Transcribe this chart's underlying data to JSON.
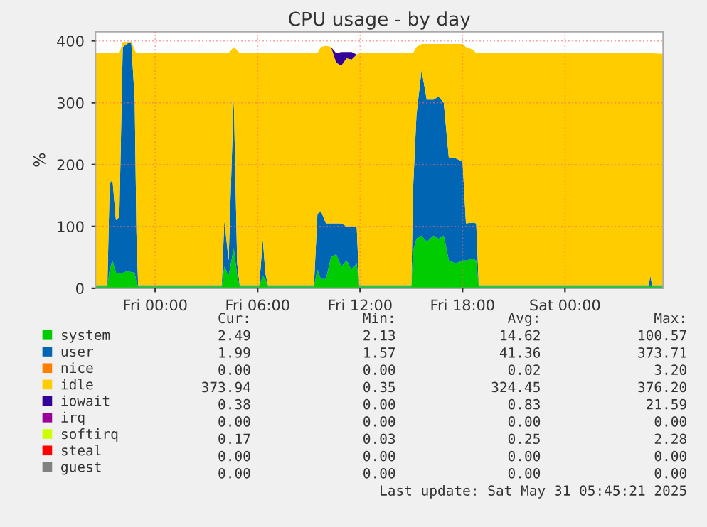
{
  "chart_data": {
    "type": "area",
    "stacked": true,
    "title": "CPU usage - by day",
    "ylabel": "%",
    "x": [
      "2025-05-29T20:30",
      "2025-05-29T21:12",
      "2025-05-29T21:20",
      "2025-05-29T21:30",
      "2025-05-29T21:42",
      "2025-05-29T21:54",
      "2025-05-29T22:06",
      "2025-05-29T22:24",
      "2025-05-29T22:36",
      "2025-05-29T22:48",
      "2025-05-29T22:54",
      "2025-05-29T23:00",
      "2025-05-30T01:30",
      "2025-05-30T03:54",
      "2025-05-30T04:03",
      "2025-05-30T04:18",
      "2025-05-30T04:36",
      "2025-05-30T04:48",
      "2025-05-30T04:57",
      "2025-05-30T06:06",
      "2025-05-30T06:18",
      "2025-05-30T06:27",
      "2025-05-30T06:36",
      "2025-05-30T08:00",
      "2025-05-30T09:18",
      "2025-05-30T09:30",
      "2025-05-30T09:42",
      "2025-05-30T10:00",
      "2025-05-30T10:18",
      "2025-05-30T10:36",
      "2025-05-30T10:54",
      "2025-05-30T11:12",
      "2025-05-30T11:30",
      "2025-05-30T11:48",
      "2025-05-30T11:57",
      "2025-05-30T13:30",
      "2025-05-30T15:00",
      "2025-05-30T15:06",
      "2025-05-30T15:18",
      "2025-05-30T15:36",
      "2025-05-30T15:54",
      "2025-05-30T16:18",
      "2025-05-30T16:36",
      "2025-05-30T16:54",
      "2025-05-30T17:12",
      "2025-05-30T17:36",
      "2025-05-30T18:00",
      "2025-05-30T18:12",
      "2025-05-30T18:36",
      "2025-05-30T18:48",
      "2025-05-30T18:57",
      "2025-05-30T22:00",
      "2025-05-31T02:00",
      "2025-05-31T04:54",
      "2025-05-31T05:00",
      "2025-05-31T05:06",
      "2025-05-31T05:45"
    ],
    "series": [
      {
        "name": "system",
        "color": "#00cc00",
        "values": [
          3,
          3,
          30,
          45,
          25,
          25,
          25,
          28,
          26,
          25,
          10,
          3,
          3,
          3,
          35,
          20,
          65,
          20,
          3,
          3,
          20,
          15,
          3,
          3,
          3,
          30,
          15,
          15,
          50,
          55,
          35,
          45,
          30,
          40,
          3,
          3,
          3,
          60,
          80,
          85,
          75,
          85,
          80,
          85,
          45,
          40,
          45,
          45,
          48,
          45,
          3,
          3,
          3,
          3,
          5,
          3,
          3
        ]
      },
      {
        "name": "user",
        "color": "#0066b3",
        "values": [
          2,
          2,
          140,
          130,
          85,
          90,
          365,
          368,
          370,
          280,
          80,
          2,
          2,
          2,
          75,
          25,
          245,
          20,
          2,
          2,
          60,
          10,
          2,
          2,
          2,
          90,
          110,
          90,
          55,
          50,
          70,
          55,
          70,
          60,
          2,
          2,
          2,
          100,
          200,
          268,
          230,
          220,
          230,
          215,
          165,
          170,
          160,
          60,
          58,
          60,
          2,
          2,
          2,
          2,
          15,
          2,
          2
        ]
      },
      {
        "name": "nice",
        "color": "#ff8000",
        "values": [
          null,
          null,
          null,
          null,
          null,
          null,
          null,
          null,
          null,
          null,
          null,
          null,
          null,
          null,
          null,
          null,
          null,
          null,
          null,
          null,
          null,
          null,
          null,
          null,
          null,
          null,
          null,
          null,
          null,
          null,
          null,
          null,
          null,
          null,
          null,
          null,
          null,
          null,
          null,
          null,
          null,
          null,
          null,
          null,
          null,
          null,
          null,
          null,
          null,
          null,
          null,
          null,
          null,
          null,
          null,
          null,
          null
        ]
      },
      {
        "name": "idle",
        "color": "#ffcc00",
        "values": [
          375,
          375,
          210,
          205,
          270,
          265,
          8,
          2,
          3,
          80,
          290,
          375,
          375,
          375,
          270,
          335,
          80,
          345,
          375,
          375,
          300,
          355,
          375,
          375,
          375,
          260,
          265,
          287,
          285,
          260,
          255,
          272,
          270,
          278,
          375,
          375,
          375,
          220,
          110,
          42,
          90,
          90,
          85,
          95,
          185,
          185,
          190,
          285,
          280,
          275,
          375,
          375,
          375,
          375,
          360,
          375,
          374
        ]
      },
      {
        "name": "iowait",
        "color": "#330099",
        "values": [
          0,
          0,
          0,
          0,
          0,
          0,
          0,
          0,
          0,
          0,
          0,
          0,
          0,
          0,
          0,
          0,
          0,
          0,
          0,
          0,
          0,
          0,
          0,
          0,
          0,
          0,
          0,
          0,
          0,
          15,
          22,
          10,
          12,
          0,
          0,
          0,
          0,
          0,
          0,
          0,
          0,
          0,
          0,
          0,
          0,
          0,
          0,
          0,
          0,
          0,
          0,
          0,
          0,
          0,
          0,
          0,
          0
        ]
      },
      {
        "name": "irq",
        "color": "#990099",
        "values": [
          null,
          null,
          null,
          null,
          null,
          null,
          null,
          null,
          null,
          null,
          null,
          null,
          null,
          null,
          null,
          null,
          null,
          null,
          null,
          null,
          null,
          null,
          null,
          null,
          null,
          null,
          null,
          null,
          null,
          null,
          null,
          null,
          null,
          null,
          null,
          null,
          null,
          null,
          null,
          null,
          null,
          null,
          null,
          null,
          null,
          null,
          null,
          null,
          null,
          null,
          null,
          null,
          null,
          null,
          null,
          null,
          null
        ]
      },
      {
        "name": "softirq",
        "color": "#ccff00",
        "values": [
          null,
          null,
          null,
          null,
          null,
          null,
          null,
          null,
          null,
          null,
          null,
          null,
          null,
          null,
          null,
          null,
          null,
          null,
          null,
          null,
          null,
          null,
          null,
          null,
          null,
          null,
          null,
          null,
          null,
          null,
          null,
          null,
          null,
          null,
          null,
          null,
          null,
          null,
          null,
          null,
          null,
          null,
          null,
          null,
          null,
          null,
          null,
          null,
          null,
          null,
          null,
          null,
          null,
          null,
          null,
          null,
          null
        ]
      },
      {
        "name": "steal",
        "color": "#ff0000",
        "values": [
          null,
          null,
          null,
          null,
          null,
          null,
          null,
          null,
          null,
          null,
          null,
          null,
          null,
          null,
          null,
          null,
          null,
          null,
          null,
          null,
          null,
          null,
          null,
          null,
          null,
          null,
          null,
          null,
          null,
          null,
          null,
          null,
          null,
          null,
          null,
          null,
          null,
          null,
          null,
          null,
          null,
          null,
          null,
          null,
          null,
          null,
          null,
          null,
          null,
          null,
          null,
          null,
          null,
          null,
          null,
          null,
          null
        ]
      },
      {
        "name": "guest",
        "color": "#808080",
        "values": [
          null,
          null,
          null,
          null,
          null,
          null,
          null,
          null,
          null,
          null,
          null,
          null,
          null,
          null,
          null,
          null,
          null,
          null,
          null,
          null,
          null,
          null,
          null,
          null,
          null,
          null,
          null,
          null,
          null,
          null,
          null,
          null,
          null,
          null,
          null,
          null,
          null,
          null,
          null,
          null,
          null,
          null,
          null,
          null,
          null,
          null,
          null,
          null,
          null,
          null,
          null,
          null,
          null,
          null,
          null,
          null,
          null
        ]
      }
    ],
    "xlim": [
      "2025-05-29T20:30",
      "2025-05-31T05:45"
    ],
    "xticks": [
      {
        "value": "2025-05-30T00:00",
        "label": "Fri 00:00"
      },
      {
        "value": "2025-05-30T06:00",
        "label": "Fri 06:00"
      },
      {
        "value": "2025-05-30T12:00",
        "label": "Fri 12:00"
      },
      {
        "value": "2025-05-30T18:00",
        "label": "Fri 18:00"
      },
      {
        "value": "2025-05-31T00:00",
        "label": "Sat 00:00"
      }
    ],
    "ylim": [
      0,
      415
    ],
    "yticks": [
      0,
      100,
      200,
      300,
      400
    ],
    "grid": true,
    "legend": "bottom",
    "annotations": [
      "Cur:",
      "Min:",
      "Avg:",
      "Max:",
      "2.49",
      "2.13",
      "14.62",
      "100.57",
      "1.99",
      "1.57",
      "41.36",
      "373.71",
      "0.00",
      "0.00",
      "0.02",
      "3.20",
      "373.94",
      "0.35",
      "324.45",
      "376.20",
      "0.38",
      "0.00",
      "0.83",
      "21.59",
      "0.00",
      "0.00",
      "0.00",
      "0.00",
      "0.17",
      "0.03",
      "0.25",
      "2.28",
      "0.00",
      "0.00",
      "0.00",
      "0.00",
      "0.00",
      "0.00",
      "0.00",
      "0.00",
      "Last update: Sat May 31 05:45:21 2025"
    ]
  }
}
